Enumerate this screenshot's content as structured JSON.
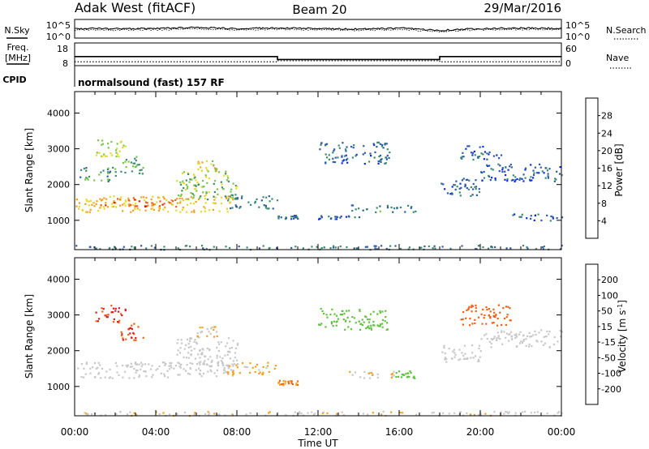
{
  "header": {
    "title": "Adak West (fitACF)",
    "beam": "Beam 20",
    "date": "29/Mar/2016"
  },
  "noise_panel": {
    "left_label": "N.Sky",
    "right_label": "N.Search",
    "left_ticks": [
      "10^5",
      "10^0"
    ],
    "right_ticks": [
      "10^5",
      "10^0"
    ]
  },
  "freq_panel": {
    "left_label_1": "Freq.",
    "left_label_2": "[MHz]",
    "left_ticks": [
      "18",
      "8"
    ],
    "right_label": "Nave",
    "right_ticks": [
      "60",
      "0"
    ]
  },
  "cpid_panel": {
    "label": "CPID",
    "text": "normalsound (fast) 157 RF"
  },
  "x_axis": {
    "label": "Time UT",
    "ticks": [
      "00:00",
      "04:00",
      "08:00",
      "12:00",
      "16:00",
      "20:00",
      "00:00"
    ]
  },
  "colors": {
    "power": [
      "#0a2ae6",
      "#2c5aa8",
      "#3c8a6c",
      "#78c44c",
      "#e6d82c",
      "#f0a020",
      "#f06018",
      "#e01818"
    ],
    "velocity": [
      "#e01818",
      "#f06018",
      "#f0a020",
      "#c8c8c8",
      "#c8c8c8",
      "#60c040",
      "#2c8a50",
      "#2c5aa8",
      "#1a28c0"
    ]
  },
  "chart_data": [
    {
      "type": "line",
      "title": "N.Sky / N.Search",
      "ylabel": "N.Sky",
      "y2label": "N.Search",
      "ylim": [
        "10^0",
        "10^5"
      ],
      "series": [
        {
          "name": "N.Sky",
          "x": [
            "00:00",
            "01:00",
            "02:00",
            "04:00",
            "06:00",
            "08:00",
            "10:00",
            "12:00",
            "14:00",
            "16:00",
            "18:00",
            "20:00",
            "22:00",
            "24:00"
          ],
          "values": [
            2.4,
            2.6,
            2.5,
            2.6,
            2.9,
            2.6,
            2.7,
            2.6,
            2.4,
            2.7,
            2.0,
            2.6,
            2.7,
            2.6
          ]
        },
        {
          "name": "N.Search",
          "x": [
            "00:00",
            "01:00",
            "02:00",
            "04:00",
            "06:00",
            "08:00",
            "10:00",
            "12:00",
            "14:00",
            "16:00",
            "18:00",
            "20:00",
            "22:00",
            "24:00"
          ],
          "values": [
            2.0,
            2.2,
            2.1,
            2.2,
            2.4,
            2.2,
            2.3,
            2.2,
            2.0,
            2.3,
            1.6,
            2.2,
            2.3,
            2.2
          ]
        }
      ]
    },
    {
      "type": "line",
      "title": "Freq. / Nave",
      "ylabel": "Freq. [MHz]",
      "y2label": "Nave",
      "ylim": [
        8,
        18
      ],
      "y2lim": [
        0,
        60
      ],
      "series": [
        {
          "name": "Freq.",
          "x": [
            "00:00",
            "10:00",
            "10:00",
            "18:00",
            "18:00",
            "24:00"
          ],
          "values": [
            12.0,
            12.0,
            10.7,
            10.7,
            12.0,
            12.0
          ]
        },
        {
          "name": "Nave",
          "x": [
            "00:00",
            "10:00",
            "10:00",
            "18:00",
            "18:00",
            "24:00"
          ],
          "values": [
            10,
            10,
            13,
            13,
            10,
            10
          ]
        }
      ]
    },
    {
      "type": "heatmap",
      "title": "Power",
      "ylabel": "Slant Range [km]",
      "xlabel": "",
      "ylim": [
        180,
        4600
      ],
      "yticks": [
        1000,
        2000,
        3000,
        4000
      ],
      "colorbar": {
        "label": "Power [dB]",
        "ticks": [
          4,
          8,
          12,
          16,
          20,
          24,
          28
        ]
      },
      "regions": [
        {
          "t0": 0.0,
          "t1": 7.8,
          "r0": 1250,
          "r1": 1700,
          "value": 20
        },
        {
          "t0": 1.0,
          "t1": 5.0,
          "r0": 1400,
          "r1": 1650,
          "value": 26
        },
        {
          "t0": 5.0,
          "t1": 8.0,
          "r0": 1600,
          "r1": 2400,
          "value": 14
        },
        {
          "t0": 6.0,
          "t1": 7.0,
          "r0": 2400,
          "r1": 2700,
          "value": 18
        },
        {
          "t0": 1.0,
          "t1": 2.5,
          "r0": 2800,
          "r1": 3300,
          "value": 16
        },
        {
          "t0": 2.2,
          "t1": 3.4,
          "r0": 2300,
          "r1": 2800,
          "value": 12
        },
        {
          "t0": 0.2,
          "t1": 2.0,
          "r0": 2100,
          "r1": 2500,
          "value": 10
        },
        {
          "t0": 7.5,
          "t1": 10.0,
          "r0": 1350,
          "r1": 1700,
          "value": 8
        },
        {
          "t0": 13.5,
          "t1": 16.8,
          "r0": 1250,
          "r1": 1450,
          "value": 9
        },
        {
          "t0": 12.0,
          "t1": 14.0,
          "r0": 1050,
          "r1": 1150,
          "value": 6
        },
        {
          "t0": 10.0,
          "t1": 11.0,
          "r0": 1050,
          "r1": 1200,
          "value": 6
        },
        {
          "t0": 12.0,
          "t1": 15.5,
          "r0": 2600,
          "r1": 3200,
          "value": 7
        },
        {
          "t0": 18.0,
          "t1": 20.0,
          "r0": 1700,
          "r1": 2200,
          "value": 7
        },
        {
          "t0": 20.0,
          "t1": 24.0,
          "r0": 2100,
          "r1": 2600,
          "value": 6
        },
        {
          "t0": 19.0,
          "t1": 21.0,
          "r0": 2700,
          "r1": 3100,
          "value": 6
        },
        {
          "t0": 21.5,
          "t1": 24.0,
          "r0": 1000,
          "r1": 1200,
          "value": 6
        },
        {
          "t0": 0.0,
          "t1": 24.0,
          "r0": 200,
          "r1": 320,
          "value": 8
        }
      ]
    },
    {
      "type": "heatmap",
      "title": "Velocity",
      "ylabel": "Slant Range [km]",
      "xlabel": "Time UT",
      "ylim": [
        180,
        4600
      ],
      "yticks": [
        1000,
        2000,
        3000,
        4000
      ],
      "colorbar": {
        "label": "Velocity [m s^-1]",
        "ticks": [
          -200,
          -100,
          -50,
          -15,
          15,
          50,
          100,
          200
        ]
      },
      "regions": [
        {
          "t0": 0.0,
          "t1": 7.8,
          "r0": 1250,
          "r1": 1700,
          "value": 0
        },
        {
          "t0": 5.0,
          "t1": 8.0,
          "r0": 1600,
          "r1": 2400,
          "value": 0
        },
        {
          "t0": 1.0,
          "t1": 2.5,
          "r0": 2800,
          "r1": 3300,
          "value": -200
        },
        {
          "t0": 2.2,
          "t1": 3.4,
          "r0": 2300,
          "r1": 2800,
          "value": -200
        },
        {
          "t0": 7.5,
          "t1": 10.0,
          "r0": 1350,
          "r1": 1700,
          "value": -60
        },
        {
          "t0": 6.0,
          "t1": 7.0,
          "r0": 2400,
          "r1": 2700,
          "value": -50
        },
        {
          "t0": 13.5,
          "t1": 15.8,
          "r0": 1250,
          "r1": 1450,
          "value": -40
        },
        {
          "t0": 15.8,
          "t1": 16.8,
          "r0": 1250,
          "r1": 1450,
          "value": 40
        },
        {
          "t0": 10.0,
          "t1": 11.0,
          "r0": 1050,
          "r1": 1200,
          "value": -100
        },
        {
          "t0": 12.0,
          "t1": 15.5,
          "r0": 2600,
          "r1": 3200,
          "value": 30
        },
        {
          "t0": 18.0,
          "t1": 20.0,
          "r0": 1700,
          "r1": 2200,
          "value": 0
        },
        {
          "t0": 20.0,
          "t1": 24.0,
          "r0": 2100,
          "r1": 2600,
          "value": 0
        },
        {
          "t0": 19.0,
          "t1": 21.5,
          "r0": 2700,
          "r1": 3300,
          "value": -120
        },
        {
          "t0": 0.0,
          "t1": 24.0,
          "r0": 200,
          "r1": 320,
          "value": -40
        }
      ]
    }
  ]
}
